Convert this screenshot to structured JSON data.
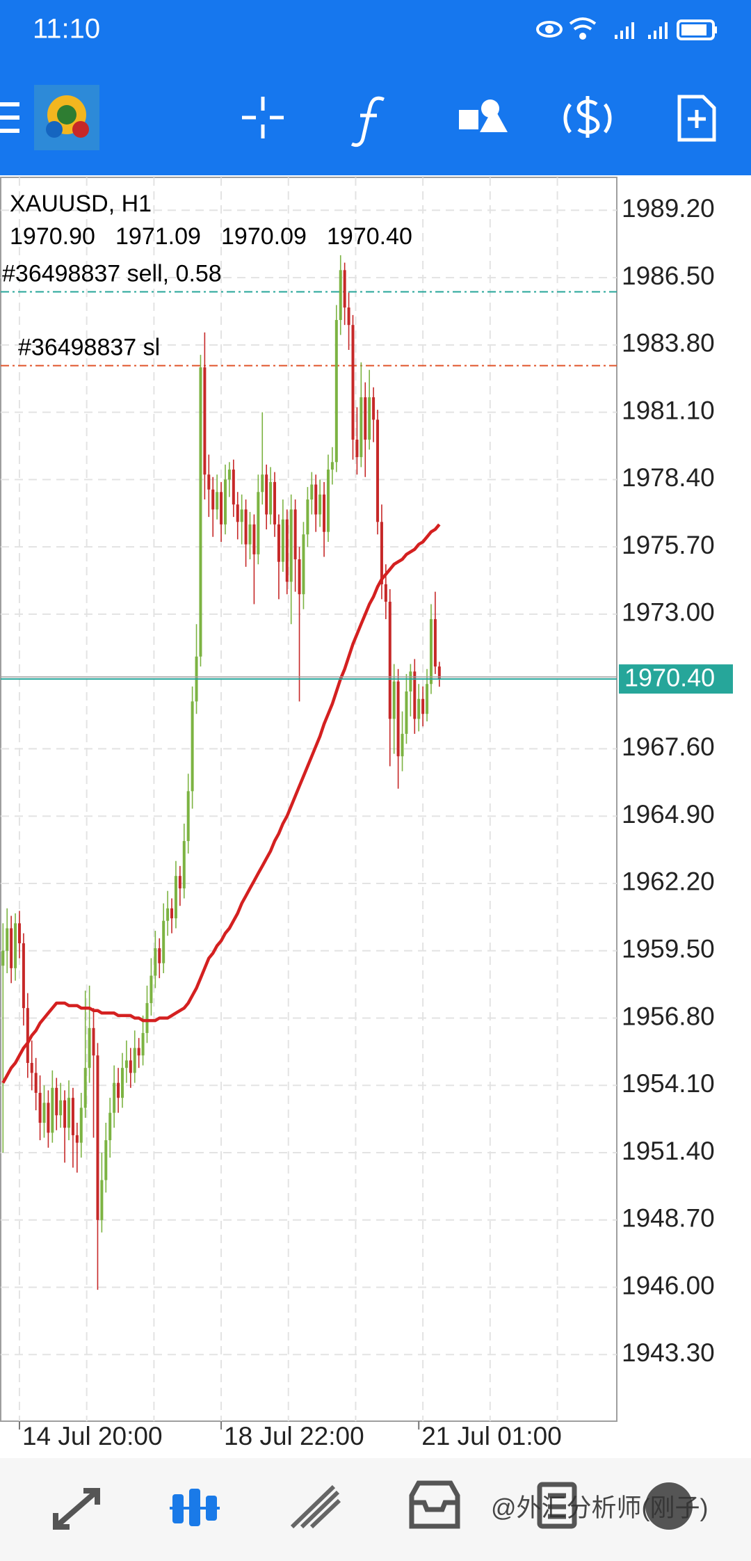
{
  "status_bar": {
    "time": "11:10"
  },
  "watermark": "@外汇分析师(刚子)",
  "chart_data": {
    "type": "candlestick",
    "title": "XAUUSD, H1",
    "quote": [
      "1970.90",
      "1971.09",
      "1970.09",
      "1970.40"
    ],
    "bull_color": "#7cb342",
    "bear_color": "#c62828",
    "grid": true,
    "ylim": [
      1940.63,
      1990.52
    ],
    "yticks": [
      {
        "value": 1989.2,
        "label": "1989.20"
      },
      {
        "value": 1986.5,
        "label": "1986.50"
      },
      {
        "value": 1983.8,
        "label": "1983.80"
      },
      {
        "value": 1981.1,
        "label": "1981.10"
      },
      {
        "value": 1978.4,
        "label": "1978.40"
      },
      {
        "value": 1975.7,
        "label": "1975.70"
      },
      {
        "value": 1973,
        "label": "1973.00"
      },
      {
        "value": 1967.6,
        "label": "1967.60"
      },
      {
        "value": 1964.9,
        "label": "1964.90"
      },
      {
        "value": 1962.2,
        "label": "1962.20"
      },
      {
        "value": 1959.5,
        "label": "1959.50"
      },
      {
        "value": 1956.8,
        "label": "1956.80"
      },
      {
        "value": 1954.1,
        "label": "1954.10"
      },
      {
        "value": 1951.4,
        "label": "1951.40"
      },
      {
        "value": 1948.7,
        "label": "1948.70"
      },
      {
        "value": 1946,
        "label": "1946.00"
      },
      {
        "value": 1943.3,
        "label": "1943.30"
      }
    ],
    "current_price": {
      "value": 1970.4,
      "label": "1970.40",
      "color": "#26a69a"
    },
    "levels": [
      {
        "label": "#36498837 sell, 0.58",
        "value": 1985.93,
        "color": "#26a69a"
      },
      {
        "label": "#36498837 sl",
        "value": 1982.97,
        "color": "#e0542a"
      }
    ],
    "categories": [
      null,
      null,
      null,
      null,
      "14 Jul 20:00",
      null,
      null,
      null,
      null,
      null,
      null,
      null,
      null,
      null,
      null,
      null,
      null,
      null,
      null,
      null,
      null,
      null,
      null,
      null,
      null,
      null,
      null,
      null,
      null,
      null,
      null,
      null,
      null,
      null,
      null,
      null,
      null,
      null,
      null,
      null,
      null,
      null,
      null,
      null,
      null,
      null,
      null,
      null,
      null,
      null,
      null,
      null,
      null,
      "18 Jul 22:00",
      null,
      null,
      null,
      null,
      null,
      null,
      null,
      null,
      null,
      null,
      null,
      null,
      null,
      null,
      null,
      null,
      null,
      null,
      null,
      null,
      null,
      null,
      null,
      null,
      null,
      null,
      null,
      null,
      null,
      null,
      null,
      null,
      null,
      null,
      null,
      null,
      null,
      null,
      null,
      null,
      null,
      null,
      null,
      null,
      null,
      null,
      null,
      "21 Jul 01:00",
      null,
      null,
      null,
      null,
      null
    ],
    "ohlc": [
      [
        1958.9,
        1960.6,
        1951.4,
        1959.5
      ],
      [
        1959.5,
        1961.2,
        1958.6,
        1960.4
      ],
      [
        1960.4,
        1960.9,
        1958.2,
        1958.8
      ],
      [
        1958.8,
        1961.0,
        1958.3,
        1960.6
      ],
      [
        1960.6,
        1961.1,
        1959.2,
        1959.8
      ],
      [
        1959.8,
        1960.2,
        1956.5,
        1957.2
      ],
      [
        1957.2,
        1957.8,
        1954.4,
        1955.0
      ],
      [
        1955.0,
        1955.9,
        1953.9,
        1954.6
      ],
      [
        1954.6,
        1955.2,
        1953.1,
        1953.8
      ],
      [
        1953.8,
        1954.5,
        1951.9,
        1952.6
      ],
      [
        1952.6,
        1954.1,
        1952.0,
        1953.4
      ],
      [
        1953.4,
        1953.9,
        1951.6,
        1952.2
      ],
      [
        1952.2,
        1954.7,
        1951.8,
        1954.0
      ],
      [
        1954.0,
        1954.4,
        1952.3,
        1952.9
      ],
      [
        1952.9,
        1954.2,
        1952.4,
        1953.5
      ],
      [
        1953.5,
        1953.9,
        1951.0,
        1952.4
      ],
      [
        1952.4,
        1954.3,
        1951.9,
        1953.6
      ],
      [
        1953.6,
        1954.0,
        1950.8,
        1952.1
      ],
      [
        1952.1,
        1952.6,
        1950.6,
        1951.8
      ],
      [
        1951.8,
        1953.8,
        1951.2,
        1953.2
      ],
      [
        1953.2,
        1957.9,
        1952.8,
        1954.8
      ],
      [
        1954.8,
        1958.1,
        1954.2,
        1956.4
      ],
      [
        1956.4,
        1957.2,
        1952.0,
        1955.3
      ],
      [
        1955.3,
        1955.8,
        1945.9,
        1948.7
      ],
      [
        1948.7,
        1951.4,
        1948.2,
        1950.3
      ],
      [
        1950.3,
        1952.6,
        1949.8,
        1951.9
      ],
      [
        1951.9,
        1953.6,
        1951.2,
        1953.0
      ],
      [
        1953.0,
        1954.9,
        1952.4,
        1954.2
      ],
      [
        1954.2,
        1954.8,
        1953.0,
        1953.6
      ],
      [
        1953.6,
        1955.4,
        1953.2,
        1954.8
      ],
      [
        1954.8,
        1955.9,
        1954.2,
        1955.1
      ],
      [
        1955.1,
        1955.6,
        1954.0,
        1954.6
      ],
      [
        1954.6,
        1956.3,
        1954.2,
        1955.6
      ],
      [
        1955.6,
        1956.0,
        1954.8,
        1955.3
      ],
      [
        1955.3,
        1956.9,
        1954.9,
        1956.2
      ],
      [
        1956.2,
        1958.1,
        1955.8,
        1957.4
      ],
      [
        1957.4,
        1959.2,
        1956.9,
        1958.5
      ],
      [
        1958.5,
        1960.3,
        1958.0,
        1959.6
      ],
      [
        1959.6,
        1960.0,
        1958.4,
        1959.0
      ],
      [
        1959.0,
        1961.4,
        1958.6,
        1960.7
      ],
      [
        1960.7,
        1961.9,
        1960.1,
        1961.2
      ],
      [
        1961.2,
        1961.6,
        1960.2,
        1960.8
      ],
      [
        1960.8,
        1963.1,
        1960.4,
        1962.5
      ],
      [
        1962.5,
        1962.9,
        1961.3,
        1962.0
      ],
      [
        1962.0,
        1964.6,
        1961.6,
        1963.9
      ],
      [
        1963.9,
        1966.6,
        1963.4,
        1965.9
      ],
      [
        1965.9,
        1970.1,
        1965.2,
        1969.5
      ],
      [
        1969.5,
        1972.6,
        1969.0,
        1971.3
      ],
      [
        1971.3,
        1983.4,
        1970.9,
        1982.9
      ],
      [
        1982.9,
        1984.3,
        1977.6,
        1978.6
      ],
      [
        1978.6,
        1979.4,
        1976.9,
        1978.0
      ],
      [
        1978.0,
        1978.5,
        1976.1,
        1977.2
      ],
      [
        1977.2,
        1978.6,
        1976.8,
        1977.9
      ],
      [
        1977.9,
        1978.3,
        1975.9,
        1976.6
      ],
      [
        1976.6,
        1979.0,
        1976.2,
        1978.4
      ],
      [
        1978.4,
        1979.1,
        1977.7,
        1978.8
      ],
      [
        1978.8,
        1979.2,
        1976.9,
        1977.4
      ],
      [
        1977.4,
        1977.9,
        1976.0,
        1976.7
      ],
      [
        1976.7,
        1977.8,
        1975.8,
        1977.2
      ],
      [
        1977.2,
        1977.6,
        1974.9,
        1975.8
      ],
      [
        1975.8,
        1977.1,
        1975.2,
        1976.6
      ],
      [
        1976.6,
        1977.0,
        1973.4,
        1975.4
      ],
      [
        1975.4,
        1978.6,
        1975.0,
        1977.9
      ],
      [
        1977.9,
        1981.1,
        1977.4,
        1978.6
      ],
      [
        1978.6,
        1979.0,
        1976.4,
        1977.0
      ],
      [
        1977.0,
        1978.9,
        1976.6,
        1978.3
      ],
      [
        1978.3,
        1978.7,
        1976.1,
        1976.6
      ],
      [
        1976.6,
        1977.0,
        1973.6,
        1975.1
      ],
      [
        1975.1,
        1977.6,
        1974.7,
        1976.8
      ],
      [
        1976.8,
        1977.2,
        1973.8,
        1974.3
      ],
      [
        1974.3,
        1977.8,
        1972.6,
        1977.2
      ],
      [
        1977.2,
        1977.6,
        1973.9,
        1975.2
      ],
      [
        1975.2,
        1975.7,
        1969.5,
        1973.8
      ],
      [
        1973.8,
        1976.7,
        1973.2,
        1976.2
      ],
      [
        1976.2,
        1978.1,
        1975.7,
        1977.6
      ],
      [
        1977.6,
        1978.7,
        1977.0,
        1978.2
      ],
      [
        1978.2,
        1978.6,
        1976.3,
        1977.0
      ],
      [
        1977.0,
        1978.4,
        1976.5,
        1977.8
      ],
      [
        1977.8,
        1978.3,
        1975.3,
        1976.3
      ],
      [
        1976.3,
        1979.4,
        1975.9,
        1978.8
      ],
      [
        1978.8,
        1979.7,
        1978.2,
        1979.1
      ],
      [
        1979.1,
        1985.4,
        1978.7,
        1984.8
      ],
      [
        1984.8,
        1987.4,
        1984.2,
        1986.8
      ],
      [
        1986.8,
        1987.1,
        1984.6,
        1985.3
      ],
      [
        1985.3,
        1985.9,
        1983.6,
        1984.6
      ],
      [
        1984.6,
        1985.0,
        1979.2,
        1980.0
      ],
      [
        1980.0,
        1981.3,
        1978.6,
        1979.3
      ],
      [
        1979.3,
        1983.1,
        1978.9,
        1981.7
      ],
      [
        1981.7,
        1982.3,
        1978.5,
        1980.0
      ],
      [
        1980.0,
        1982.8,
        1979.6,
        1981.7
      ],
      [
        1981.7,
        1982.1,
        1979.9,
        1980.8
      ],
      [
        1980.8,
        1981.2,
        1976.2,
        1976.7
      ],
      [
        1976.7,
        1977.4,
        1973.6,
        1974.2
      ],
      [
        1974.2,
        1975.0,
        1972.8,
        1973.5
      ],
      [
        1973.5,
        1974.0,
        1966.9,
        1968.8
      ],
      [
        1968.8,
        1971.0,
        1967.4,
        1970.3
      ],
      [
        1970.3,
        1970.8,
        1966.0,
        1967.3
      ],
      [
        1967.3,
        1969.1,
        1966.7,
        1968.2
      ],
      [
        1968.2,
        1970.6,
        1967.8,
        1969.9
      ],
      [
        1969.9,
        1971.0,
        1968.9,
        1970.7
      ],
      [
        1970.7,
        1971.2,
        1968.2,
        1968.8
      ],
      [
        1968.8,
        1970.2,
        1968.3,
        1969.6
      ],
      [
        1969.6,
        1970.1,
        1968.5,
        1969.0
      ],
      [
        1969.0,
        1970.8,
        1968.7,
        1970.2
      ],
      [
        1970.2,
        1973.4,
        1969.8,
        1972.8
      ],
      [
        1972.8,
        1973.9,
        1970.6,
        1970.9
      ],
      [
        1970.9,
        1971.09,
        1970.09,
        1970.4
      ]
    ],
    "ma": {
      "color": "#d42020",
      "values": [
        1954.2,
        1954.5,
        1954.8,
        1955.0,
        1955.3,
        1955.6,
        1955.8,
        1956.1,
        1956.3,
        1956.6,
        1956.8,
        1957.0,
        1957.2,
        1957.4,
        1957.4,
        1957.4,
        1957.3,
        1957.3,
        1957.3,
        1957.2,
        1957.2,
        1957.2,
        1957.1,
        1957.1,
        1957.0,
        1957.0,
        1957.0,
        1957.0,
        1956.9,
        1956.9,
        1956.9,
        1956.9,
        1956.8,
        1956.8,
        1956.7,
        1956.7,
        1956.7,
        1956.7,
        1956.8,
        1956.8,
        1956.8,
        1956.9,
        1957.0,
        1957.1,
        1957.2,
        1957.4,
        1957.7,
        1958.0,
        1958.4,
        1958.8,
        1959.2,
        1959.4,
        1959.7,
        1959.9,
        1960.2,
        1960.4,
        1960.7,
        1961.0,
        1961.4,
        1961.7,
        1962.0,
        1962.3,
        1962.6,
        1962.9,
        1963.2,
        1963.5,
        1963.9,
        1964.2,
        1964.6,
        1964.9,
        1965.3,
        1965.7,
        1966.1,
        1966.5,
        1966.9,
        1967.3,
        1967.7,
        1968.1,
        1968.6,
        1969.0,
        1969.4,
        1969.9,
        1970.4,
        1970.8,
        1971.3,
        1971.8,
        1972.2,
        1972.6,
        1973.0,
        1973.4,
        1973.7,
        1974.1,
        1974.4,
        1974.6,
        1974.8,
        1975.0,
        1975.1,
        1975.2,
        1975.4,
        1975.5,
        1975.6,
        1975.8,
        1975.9,
        1976.1,
        1976.3,
        1976.4,
        1976.6
      ]
    }
  }
}
